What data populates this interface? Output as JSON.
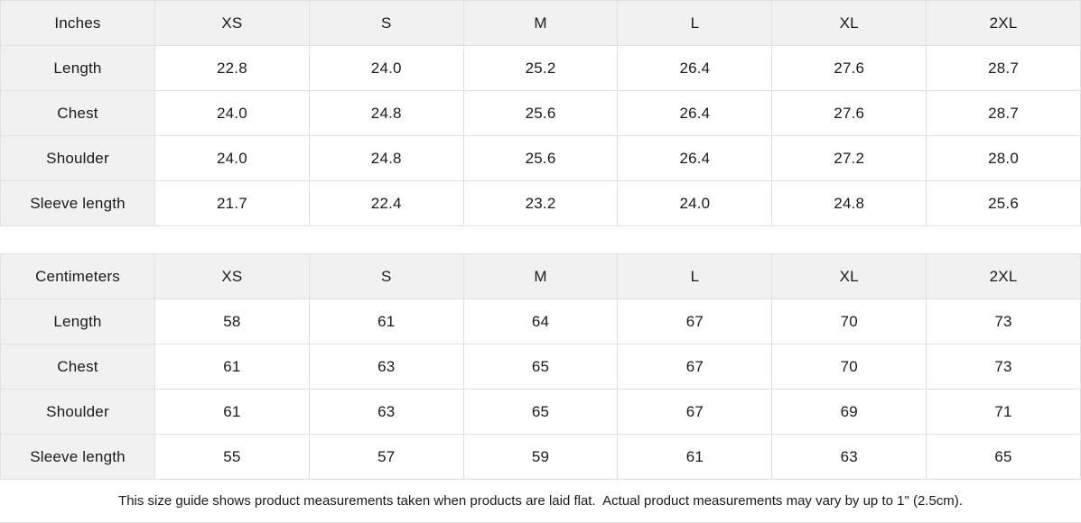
{
  "colors": {
    "header_bg": "#f1f1f1",
    "border": "#e0e0e0",
    "text": "#1a1a1a",
    "bg": "#ffffff"
  },
  "tables": [
    {
      "unit_label": "Inches",
      "sizes": [
        "XS",
        "S",
        "M",
        "L",
        "XL",
        "2XL"
      ],
      "rows": [
        {
          "label": "Length",
          "values": [
            "22.8",
            "24.0",
            "25.2",
            "26.4",
            "27.6",
            "28.7"
          ]
        },
        {
          "label": "Chest",
          "values": [
            "24.0",
            "24.8",
            "25.6",
            "26.4",
            "27.6",
            "28.7"
          ]
        },
        {
          "label": "Shoulder",
          "values": [
            "24.0",
            "24.8",
            "25.6",
            "26.4",
            "27.2",
            "28.0"
          ]
        },
        {
          "label": "Sleeve length",
          "values": [
            "21.7",
            "22.4",
            "23.2",
            "24.0",
            "24.8",
            "25.6"
          ]
        }
      ]
    },
    {
      "unit_label": "Centimeters",
      "sizes": [
        "XS",
        "S",
        "M",
        "L",
        "XL",
        "2XL"
      ],
      "rows": [
        {
          "label": "Length",
          "values": [
            "58",
            "61",
            "64",
            "67",
            "70",
            "73"
          ]
        },
        {
          "label": "Chest",
          "values": [
            "61",
            "63",
            "65",
            "67",
            "70",
            "73"
          ]
        },
        {
          "label": "Shoulder",
          "values": [
            "61",
            "63",
            "65",
            "67",
            "69",
            "71"
          ]
        },
        {
          "label": "Sleeve length",
          "values": [
            "55",
            "57",
            "59",
            "61",
            "63",
            "65"
          ]
        }
      ]
    }
  ],
  "footer": {
    "note": "This size guide shows product measurements taken when products are laid flat.  Actual product measurements may vary by up to 1\" (2.5cm)."
  },
  "chart_data": [
    {
      "type": "table",
      "title": "Inches",
      "columns": [
        "Inches",
        "XS",
        "S",
        "M",
        "L",
        "XL",
        "2XL"
      ],
      "rows": [
        [
          "Length",
          22.8,
          24.0,
          25.2,
          26.4,
          27.6,
          28.7
        ],
        [
          "Chest",
          24.0,
          24.8,
          25.6,
          26.4,
          27.6,
          28.7
        ],
        [
          "Shoulder",
          24.0,
          24.8,
          25.6,
          26.4,
          27.2,
          28.0
        ],
        [
          "Sleeve length",
          21.7,
          22.4,
          23.2,
          24.0,
          24.8,
          25.6
        ]
      ]
    },
    {
      "type": "table",
      "title": "Centimeters",
      "columns": [
        "Centimeters",
        "XS",
        "S",
        "M",
        "L",
        "XL",
        "2XL"
      ],
      "rows": [
        [
          "Length",
          58,
          61,
          64,
          67,
          70,
          73
        ],
        [
          "Chest",
          61,
          63,
          65,
          67,
          70,
          73
        ],
        [
          "Shoulder",
          61,
          63,
          65,
          67,
          69,
          71
        ],
        [
          "Sleeve length",
          55,
          57,
          59,
          61,
          63,
          65
        ]
      ]
    }
  ]
}
